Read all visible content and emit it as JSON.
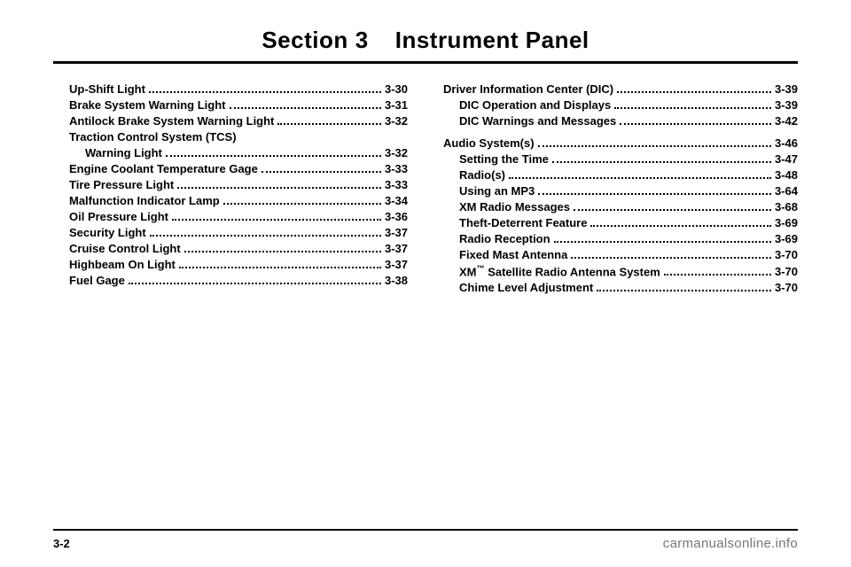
{
  "title": {
    "section_word": "Section",
    "section_num": "3",
    "section_name": "Instrument Panel"
  },
  "left_col": [
    {
      "label": "Up-Shift Light",
      "page": "3-30",
      "indent": true
    },
    {
      "label": "Brake System Warning Light",
      "page": "3-31",
      "indent": true
    },
    {
      "label": "Antilock Brake System Warning Light",
      "page": "3-32",
      "indent": true
    },
    {
      "label": "Traction Control System (TCS)",
      "page": "",
      "indent": true,
      "nowrap_only": true
    },
    {
      "label": "Warning Light",
      "page": "3-32",
      "indent": true,
      "extra_indent": true
    },
    {
      "label": "Engine Coolant Temperature Gage",
      "page": "3-33",
      "indent": true
    },
    {
      "label": "Tire Pressure Light",
      "page": "3-33",
      "indent": true
    },
    {
      "label": "Malfunction Indicator Lamp",
      "page": "3-34",
      "indent": true
    },
    {
      "label": "Oil Pressure Light",
      "page": "3-36",
      "indent": true
    },
    {
      "label": "Security Light",
      "page": "3-37",
      "indent": true
    },
    {
      "label": "Cruise Control Light",
      "page": "3-37",
      "indent": true
    },
    {
      "label": "Highbeam On Light",
      "page": "3-37",
      "indent": true
    },
    {
      "label": "Fuel Gage",
      "page": "3-38",
      "indent": true
    }
  ],
  "right_col": [
    {
      "label": "Driver Information Center (DIC)",
      "page": "3-39",
      "head": true
    },
    {
      "label": "DIC Operation and Displays",
      "page": "3-39",
      "indent": true
    },
    {
      "label": "DIC Warnings and Messages",
      "page": "3-42",
      "indent": true
    },
    {
      "label": "Audio System(s)",
      "page": "3-46",
      "head": true,
      "spaced": true
    },
    {
      "label": "Setting the Time",
      "page": "3-47",
      "indent": true
    },
    {
      "label": "Radio(s)",
      "page": "3-48",
      "indent": true
    },
    {
      "label": "Using an MP3",
      "page": "3-64",
      "indent": true
    },
    {
      "label": "XM Radio Messages",
      "page": "3-68",
      "indent": true
    },
    {
      "label": "Theft-Deterrent Feature",
      "page": "3-69",
      "indent": true
    },
    {
      "label": "Radio Reception",
      "page": "3-69",
      "indent": true
    },
    {
      "label": "Fixed Mast Antenna",
      "page": "3-70",
      "indent": true
    },
    {
      "label": "XM™ Satellite Radio Antenna System",
      "page": "3-70",
      "indent": true
    },
    {
      "label": "Chime Level Adjustment",
      "page": "3-70",
      "indent": true
    }
  ],
  "footer": {
    "page_num": "3-2",
    "watermark": "carmanualsonline.info"
  }
}
